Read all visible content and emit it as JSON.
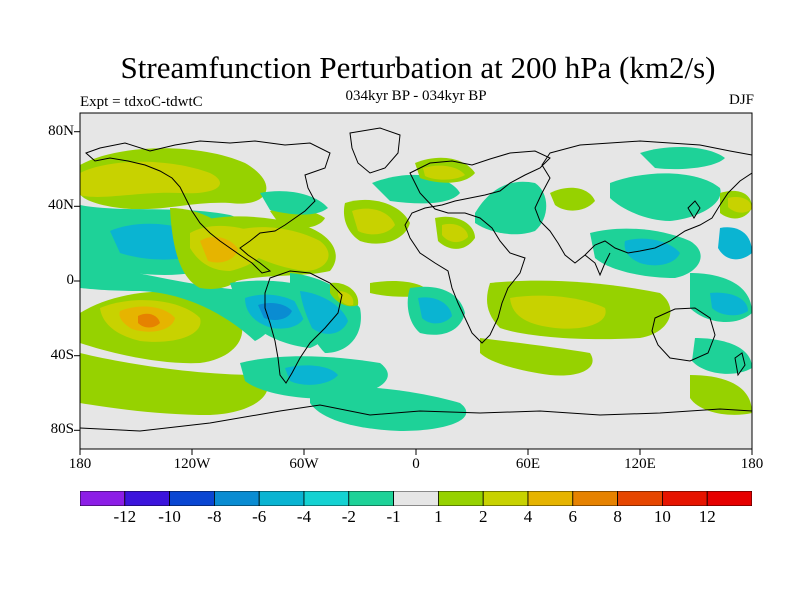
{
  "plot": {
    "title": "Streamfunction Perturbation at 200 hPa (km2/s)",
    "left_string": "Expt = tdxoC-tdwtC",
    "center_string": "034kyr BP - 034kyr BP",
    "right_string": "DJF"
  },
  "axes": {
    "y_ticks": [
      "80N",
      "40N",
      "0",
      "40S",
      "80S"
    ],
    "x_ticks": [
      "180",
      "120W",
      "60W",
      "0",
      "60E",
      "120E",
      "180"
    ]
  },
  "colorbar": {
    "labels": [
      "-12",
      "-10",
      "-8",
      "-6",
      "-4",
      "-2",
      "-1",
      "1",
      "2",
      "4",
      "6",
      "8",
      "10",
      "12"
    ],
    "colors": [
      "#8c1ee6",
      "#3c14dc",
      "#0a46d2",
      "#0a8cd2",
      "#0ab4d2",
      "#14d2d2",
      "#1ed298",
      "#e6e6e6",
      "#96d200",
      "#c8d200",
      "#e6b400",
      "#e68200",
      "#e64600",
      "#e61400",
      "#e60000"
    ]
  },
  "map_colors": {
    "background": "#e6e6e6",
    "land_outline": "#000000"
  }
}
